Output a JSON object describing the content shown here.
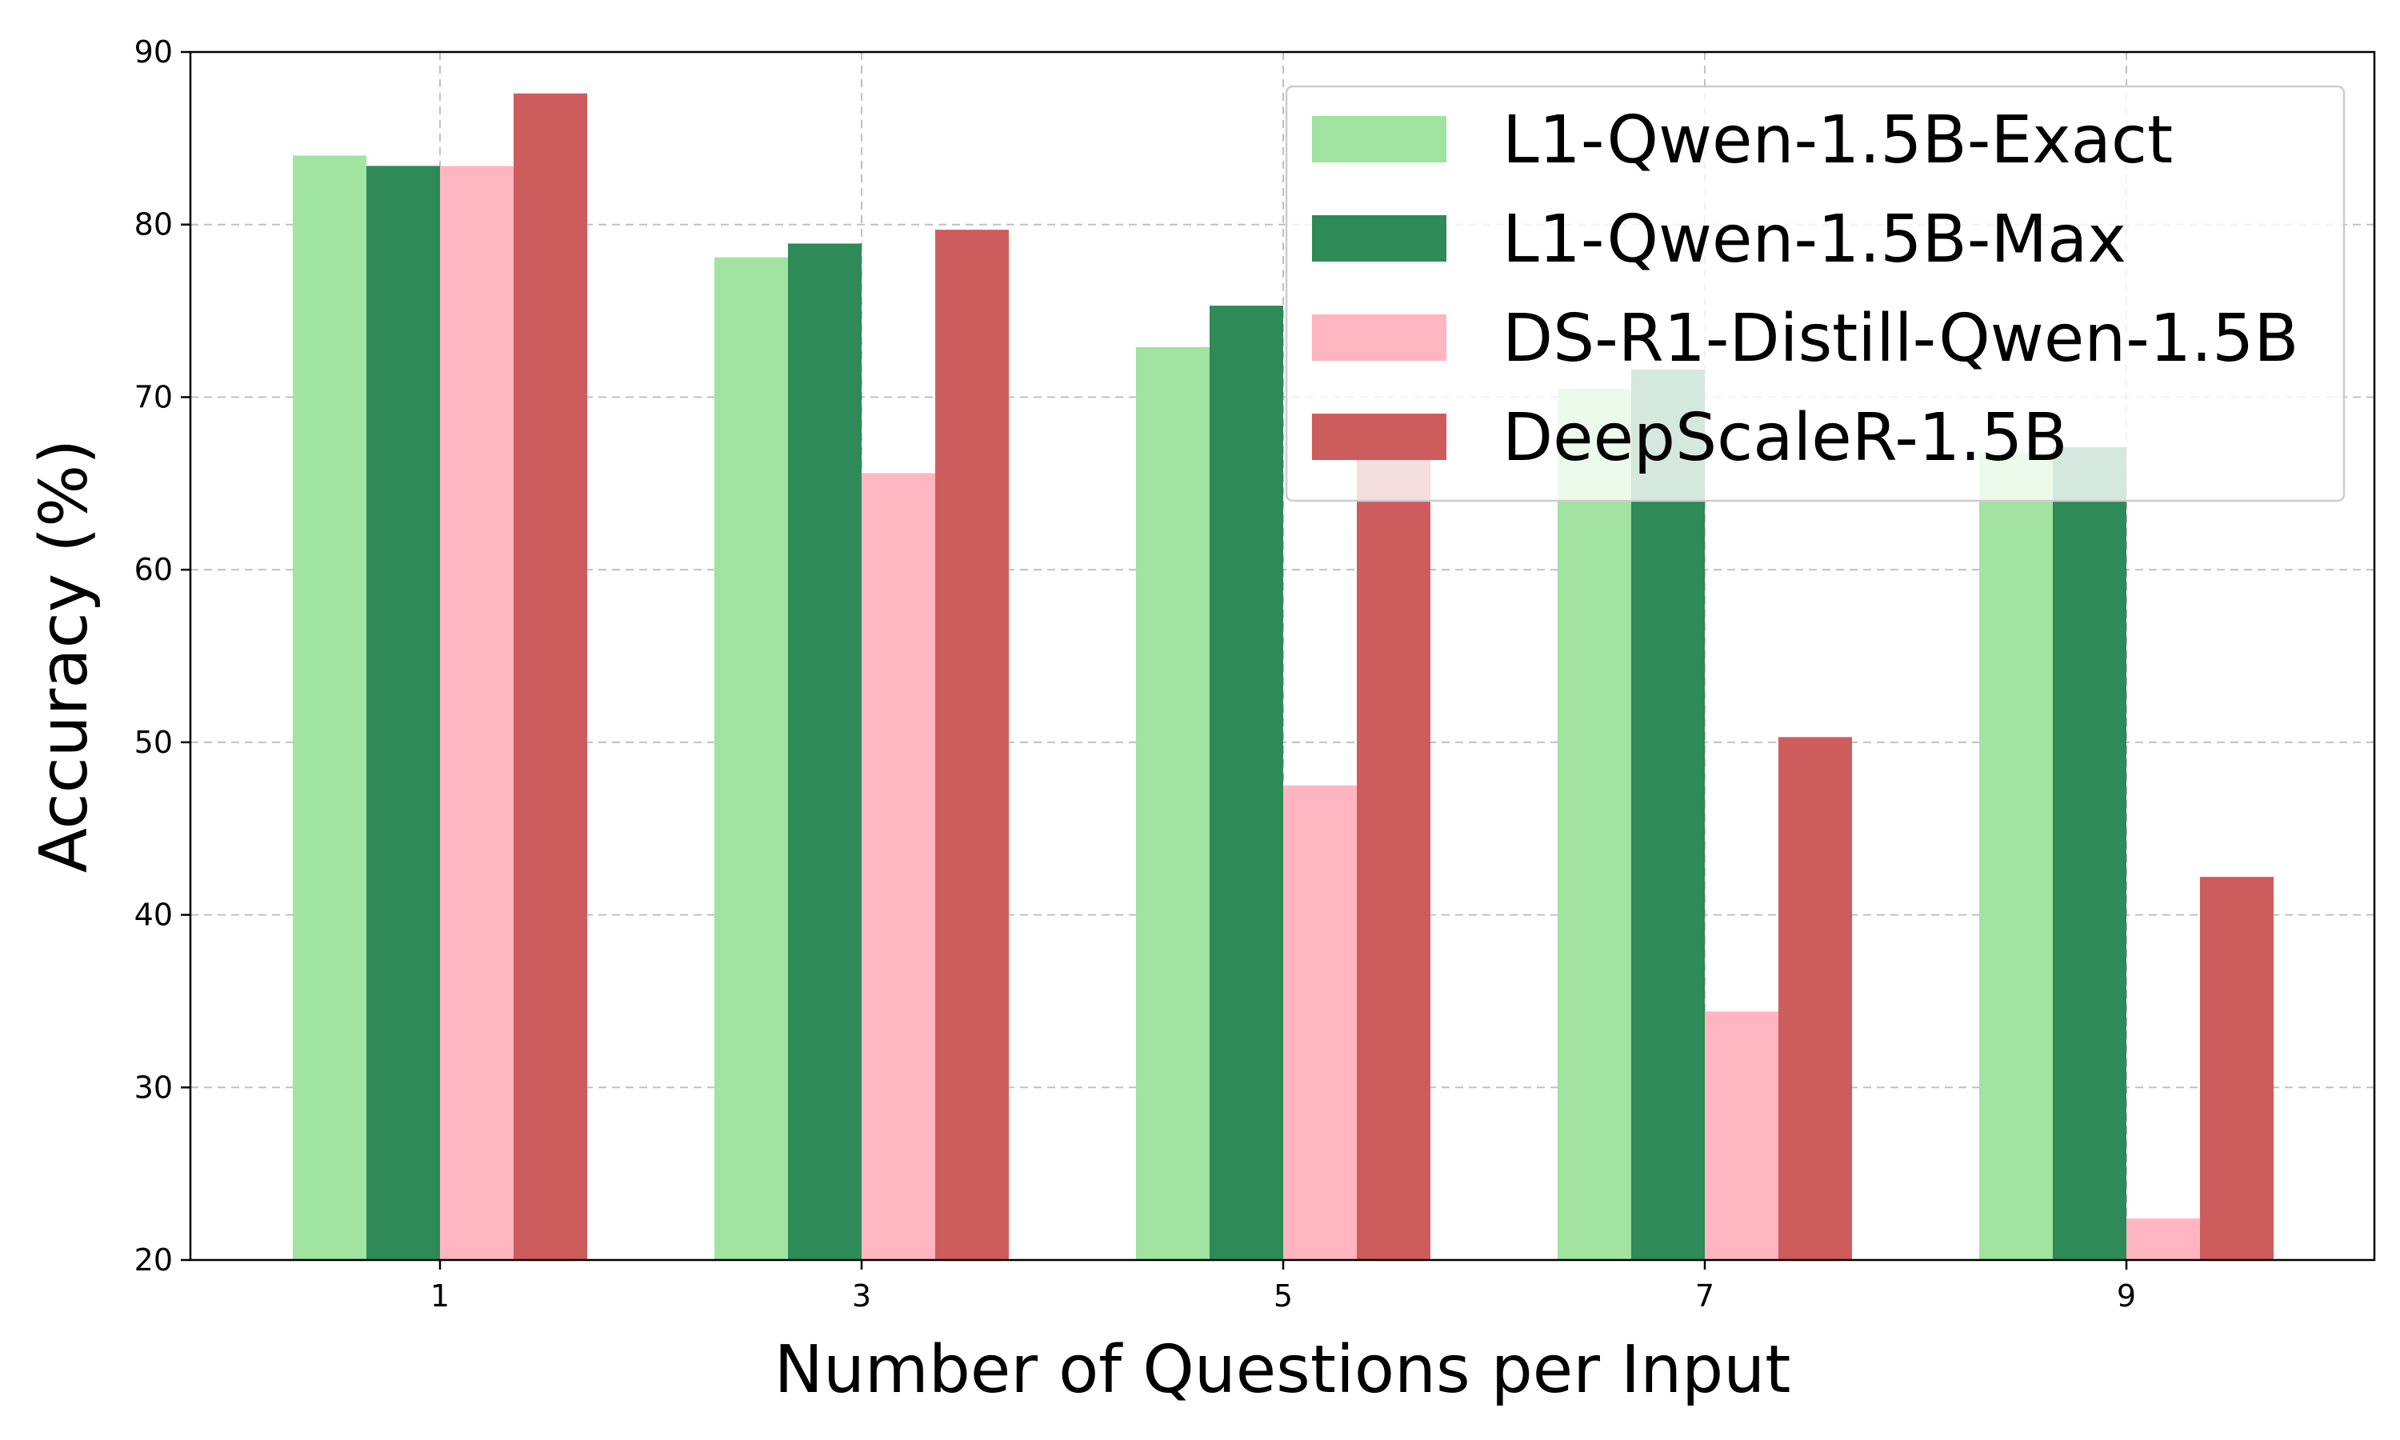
{
  "chart_data": {
    "type": "bar",
    "categories": [
      "1",
      "3",
      "5",
      "7",
      "9"
    ],
    "xlabel": "Number of Questions per Input",
    "ylabel": "Accuracy (%)",
    "ylim": [
      20,
      90
    ],
    "yticks": [
      20,
      30,
      40,
      50,
      60,
      70,
      80,
      90
    ],
    "grid": true,
    "legend_position": "top-right",
    "series": [
      {
        "name": "L1-Qwen-1.5B-Exact",
        "color": "#a1e3a0",
        "values": [
          84.0,
          78.1,
          72.9,
          70.5,
          66.8
        ]
      },
      {
        "name": "L1-Qwen-1.5B-Max",
        "color": "#2e8a57",
        "values": [
          83.4,
          78.9,
          75.3,
          71.6,
          67.1
        ]
      },
      {
        "name": "DS-R1-Distill-Qwen-1.5B",
        "color": "#ffb6c1",
        "values": [
          83.4,
          65.6,
          47.5,
          34.4,
          22.4
        ]
      },
      {
        "name": "DeepScaleR-1.5B",
        "color": "#cd5c5c",
        "values": [
          87.6,
          79.7,
          67.2,
          50.3,
          42.2
        ]
      }
    ]
  }
}
